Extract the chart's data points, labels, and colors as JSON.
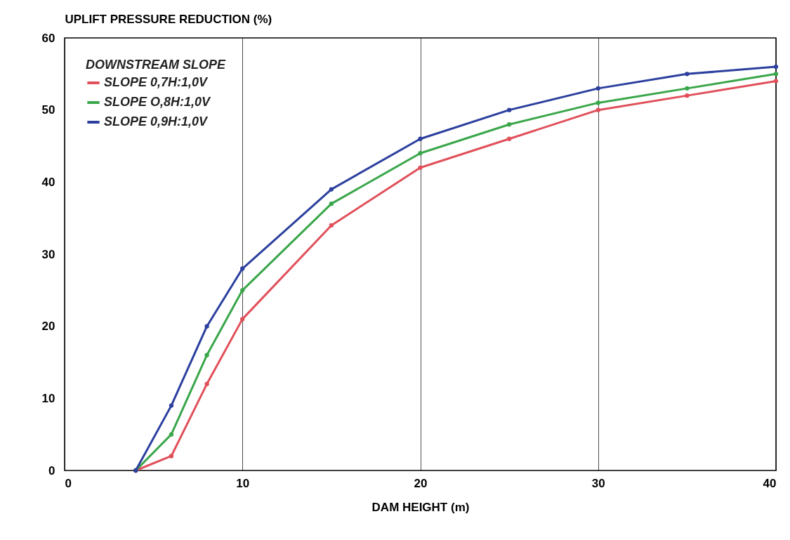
{
  "chart_data": {
    "type": "line",
    "xlabel": "DAM HEIGHT (m)",
    "ylabel": "UPLIFT PRESSURE REDUCTION (%)",
    "legend_title": "DOWNSTREAM SLOPE",
    "x": [
      4,
      6,
      8,
      10,
      15,
      20,
      25,
      30,
      35,
      40
    ],
    "series": [
      {
        "name": "SLOPE 0,7H:1,0V",
        "color": "#e0505a",
        "values": [
          0,
          2,
          12,
          21,
          34,
          42,
          46,
          50,
          52,
          54
        ]
      },
      {
        "name": "SLOPE O,8H:1,0V",
        "color": "#3aa64a",
        "values": [
          0,
          5,
          16,
          25,
          37,
          44,
          48,
          51,
          53,
          55
        ]
      },
      {
        "name": "SLOPE 0,9H:1,0V",
        "color": "#2b3f9e",
        "values": [
          0,
          9,
          20,
          28,
          39,
          46,
          50,
          53,
          55,
          56
        ]
      }
    ],
    "xlim": [
      0,
      40
    ],
    "xticks": [
      0,
      10,
      20,
      30,
      40
    ],
    "ylim": [
      0,
      60
    ],
    "yticks": [
      0,
      10,
      20,
      30,
      40,
      50,
      60
    ],
    "grid": "x",
    "legend": "top left",
    "marker": "circle",
    "line_style": "solid"
  }
}
